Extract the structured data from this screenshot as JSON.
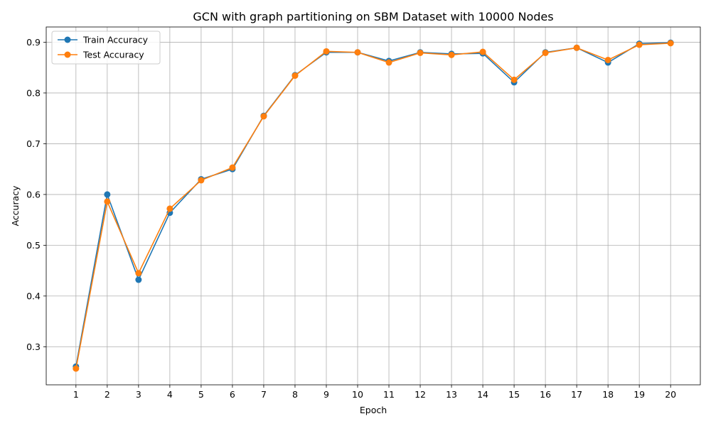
{
  "chart_data": {
    "type": "line",
    "title": "GCN with graph partitioning on SBM Dataset with 10000 Nodes",
    "xlabel": "Epoch",
    "ylabel": "Accuracy",
    "x": [
      1,
      2,
      3,
      4,
      5,
      6,
      7,
      8,
      9,
      10,
      11,
      12,
      13,
      14,
      15,
      16,
      17,
      18,
      19,
      20
    ],
    "xlim": [
      0.05,
      20.95
    ],
    "ylim": [
      0.225,
      0.93
    ],
    "yticks": [
      0.3,
      0.4,
      0.5,
      0.6,
      0.7,
      0.8,
      0.9
    ],
    "ytick_labels": [
      "0.3",
      "0.4",
      "0.5",
      "0.6",
      "0.7",
      "0.8",
      "0.9"
    ],
    "grid": true,
    "legend_position": "top-left",
    "series": [
      {
        "name": "Train Accuracy",
        "color": "#1f77b4",
        "values": [
          0.261,
          0.6,
          0.432,
          0.564,
          0.63,
          0.65,
          0.755,
          0.835,
          0.88,
          0.88,
          0.863,
          0.88,
          0.877,
          0.878,
          0.821,
          0.88,
          0.889,
          0.86,
          0.897,
          0.899
        ]
      },
      {
        "name": "Test Accuracy",
        "color": "#ff7f0e",
        "values": [
          0.257,
          0.586,
          0.445,
          0.572,
          0.628,
          0.653,
          0.754,
          0.834,
          0.882,
          0.88,
          0.86,
          0.879,
          0.875,
          0.881,
          0.826,
          0.879,
          0.889,
          0.865,
          0.895,
          0.898
        ]
      }
    ]
  }
}
